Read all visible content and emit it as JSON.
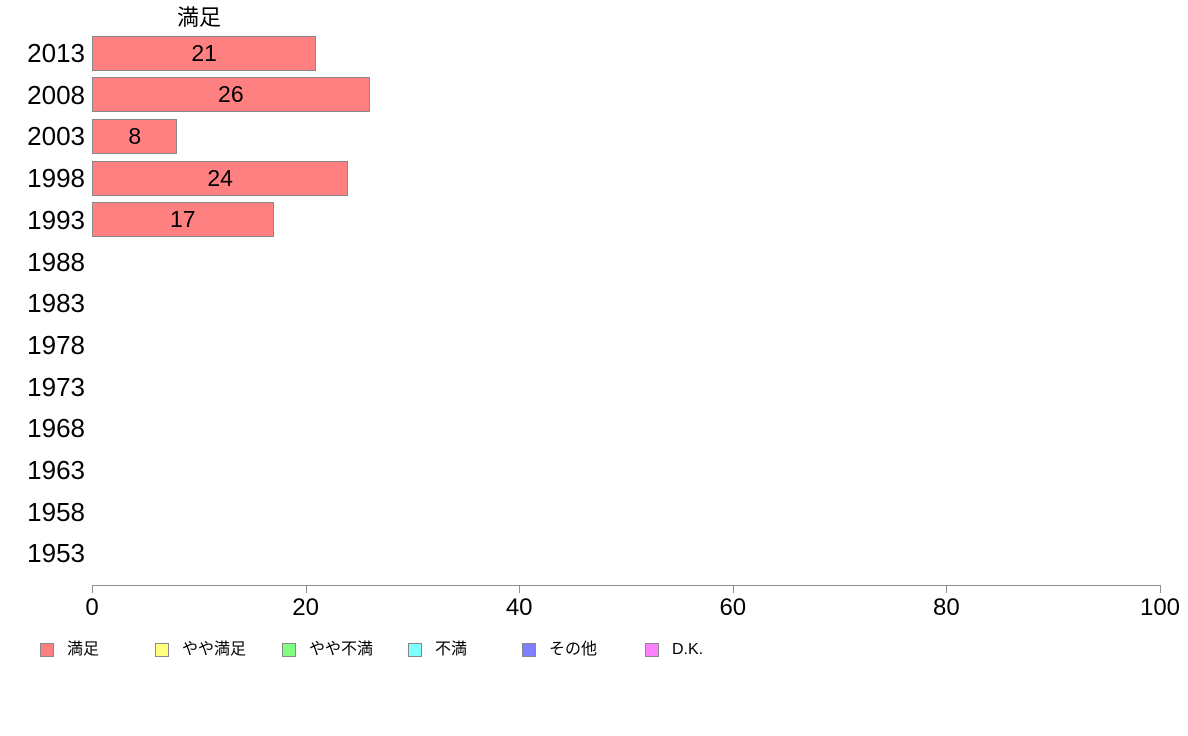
{
  "chart_data": {
    "type": "bar",
    "orientation": "horizontal",
    "title": "満足",
    "categories": [
      "2013",
      "2008",
      "2003",
      "1998",
      "1993",
      "1988",
      "1983",
      "1978",
      "1973",
      "1968",
      "1963",
      "1958",
      "1953"
    ],
    "values": [
      21,
      26,
      8,
      24,
      17,
      null,
      null,
      null,
      null,
      null,
      null,
      null,
      null
    ],
    "xlabel": "",
    "ylabel": "",
    "xlim": [
      0,
      100
    ],
    "x_ticks": [
      0,
      20,
      40,
      60,
      80,
      100
    ],
    "grid": false,
    "bar_fill": "#FF8080",
    "bar_border": "#888888",
    "axis_color": "#909090",
    "text_color": "#000000",
    "legend_position": "bottom",
    "legend": [
      {
        "label": "満足",
        "color": "#FF8080"
      },
      {
        "label": "やや満足",
        "color": "#FFFF80"
      },
      {
        "label": "やや不満",
        "color": "#80FF80"
      },
      {
        "label": "不満",
        "color": "#80FFFF"
      },
      {
        "label": "その他",
        "color": "#8080FF"
      },
      {
        "label": "D.K.",
        "color": "#FF80FF"
      }
    ]
  }
}
